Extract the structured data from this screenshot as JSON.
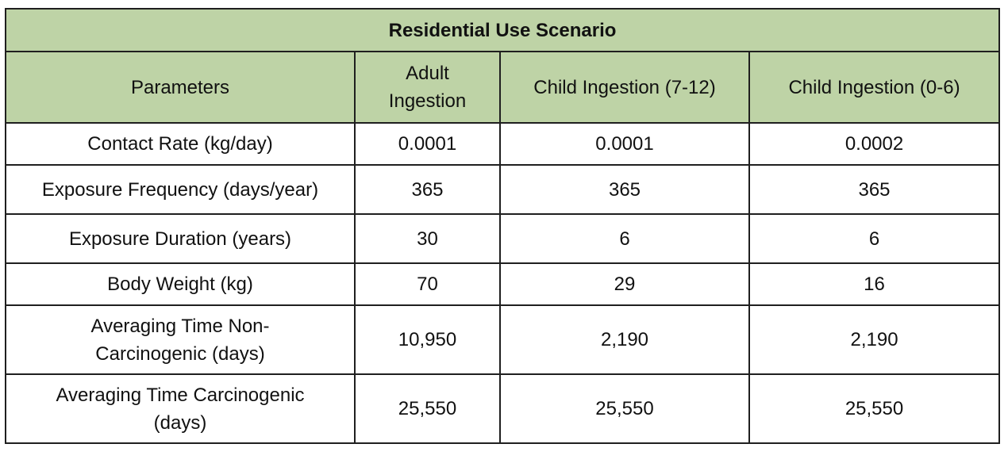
{
  "table": {
    "title": "Residential Use Scenario",
    "headers": [
      "Parameters",
      "Adult Ingestion",
      "Child Ingestion (7-12)",
      "Child Ingestion (0-6)"
    ],
    "header_color": "#bed3a6",
    "rows": [
      [
        "Contact Rate (kg/day)",
        "0.0001",
        "0.0001",
        "0.0002"
      ],
      [
        "Exposure Frequency (days/year)",
        "365",
        "365",
        "365"
      ],
      [
        "Exposure Duration (years)",
        "30",
        "6",
        "6"
      ],
      [
        "Body Weight (kg)",
        "70",
        "29",
        "16"
      ],
      [
        "Averaging Time Non-Carcinogenic (days)",
        "10,950",
        "2,190",
        "2,190"
      ],
      [
        "Averaging Time Carcinogenic (days)",
        "25,550",
        "25,550",
        "25,550"
      ]
    ]
  }
}
